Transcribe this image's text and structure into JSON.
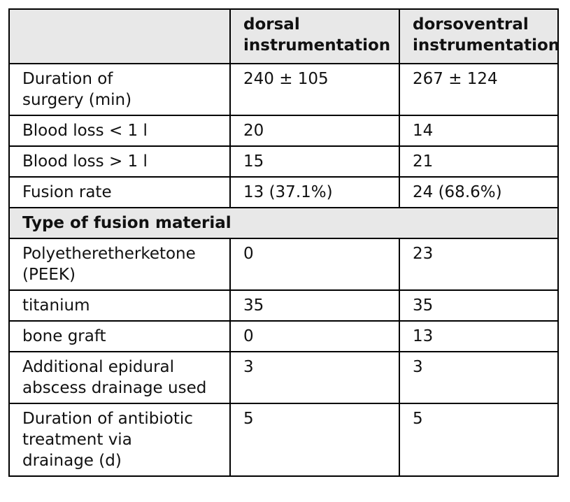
{
  "table": {
    "header": [
      "",
      "dorsal\ninstrumentation",
      "dorsoventral\ninstrumentation"
    ],
    "rows": [
      [
        "Duration of\nsurgery (min)",
        "240 ± 105",
        "267 ± 124"
      ],
      [
        "Blood loss < 1 l",
        "20",
        "14"
      ],
      [
        "Blood loss > 1 l",
        "15",
        "21"
      ],
      [
        "Fusion rate",
        "13 (37.1%)",
        "24 (68.6%)"
      ]
    ],
    "section_title": "Type of fusion material",
    "section_rows": [
      [
        "Polyetheretherketone\n(PEEK)",
        "0",
        "23"
      ],
      [
        "titanium",
        "35",
        "35"
      ],
      [
        "bone graft",
        "0",
        "13"
      ],
      [
        "Additional epidural\nabscess drainage used",
        "3",
        "3"
      ],
      [
        "Duration of antibiotic\ntreatment via\ndrainage (d)",
        "5",
        "5"
      ]
    ]
  }
}
